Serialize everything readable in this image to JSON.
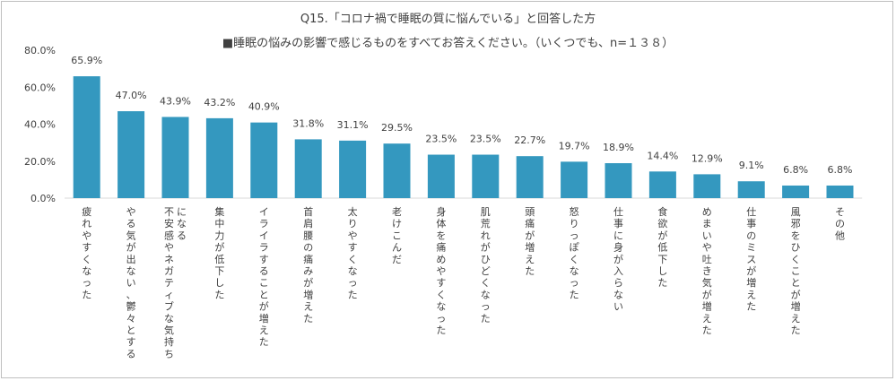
{
  "chart_data": {
    "type": "bar",
    "title": "Q15.「コロナ禍で睡眠の質に悩んでいる」と回答した方",
    "subtitle": "■睡眠の悩みの影響で感じるものをすべてお答えください。（いくつでも、n=１３８）",
    "ylim": [
      0,
      80
    ],
    "yticks": [
      "0.0%",
      "20.0%",
      "40.0%",
      "60.0%",
      "80.0%"
    ],
    "grid": false,
    "bar_color": "#3498bf",
    "categories": [
      "疲れやすくなった",
      "やる気が出ない、鬱々とする",
      "不安感やネガティブな気持ちになる",
      "集中力が低下した",
      "イライラすることが増えた",
      "首肩腰の痛みが増えた",
      "太りやすくなった",
      "老けこんだ",
      "身体を痛めやすくなった",
      "肌荒れがひどくなった",
      "頭痛が増えた",
      "怒りっぽくなった",
      "仕事に身が入らない",
      "食欲が低下した",
      "めまいや吐き気が増えた",
      "仕事のミスが増えた",
      "風邪をひくことが増えた",
      "その他"
    ],
    "values": [
      65.9,
      47.0,
      43.9,
      43.2,
      40.9,
      31.8,
      31.1,
      29.5,
      23.5,
      23.5,
      22.7,
      19.7,
      18.9,
      14.4,
      12.9,
      9.1,
      6.8,
      6.8
    ],
    "value_labels": [
      "65.9%",
      "47.0%",
      "43.9%",
      "43.2%",
      "40.9%",
      "31.8%",
      "31.1%",
      "29.5%",
      "23.5%",
      "23.5%",
      "22.7%",
      "19.7%",
      "18.9%",
      "14.4%",
      "12.9%",
      "9.1%",
      "6.8%",
      "6.8%"
    ]
  }
}
